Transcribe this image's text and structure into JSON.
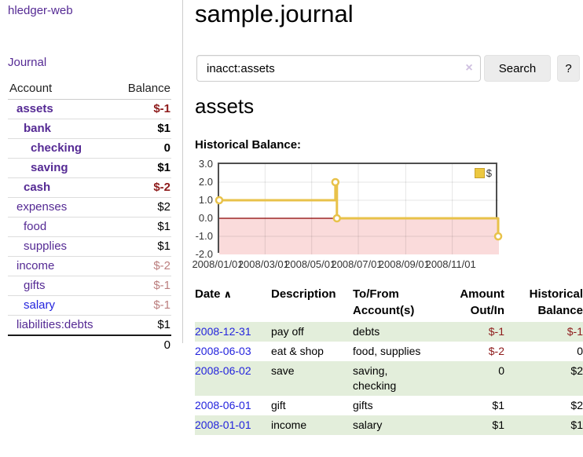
{
  "sidebar": {
    "brand": "hledger-web",
    "nav": {
      "journal_label": "Journal"
    },
    "accounts_table": {
      "headers": {
        "account": "Account",
        "balance": "Balance"
      },
      "rows": [
        {
          "account": "assets",
          "balance": "$-1",
          "level": 1,
          "bold": true,
          "negative": "strong",
          "link_style": "visited"
        },
        {
          "account": "bank",
          "balance": "$1",
          "level": 2,
          "bold": true,
          "negative": "none",
          "link_style": "visited"
        },
        {
          "account": "checking",
          "balance": "0",
          "level": 3,
          "bold": true,
          "negative": "none",
          "link_style": "visited"
        },
        {
          "account": "saving",
          "balance": "$1",
          "level": 3,
          "bold": true,
          "negative": "none",
          "link_style": "visited"
        },
        {
          "account": "cash",
          "balance": "$-2",
          "level": 2,
          "bold": true,
          "negative": "strong",
          "link_style": "visited"
        },
        {
          "account": "expenses",
          "balance": "$2",
          "level": 1,
          "bold": false,
          "negative": "none",
          "link_style": "visited"
        },
        {
          "account": "food",
          "balance": "$1",
          "level": 2,
          "bold": false,
          "negative": "none",
          "link_style": "visited"
        },
        {
          "account": "supplies",
          "balance": "$1",
          "level": 2,
          "bold": false,
          "negative": "none",
          "link_style": "visited"
        },
        {
          "account": "income",
          "balance": "$-2",
          "level": 1,
          "bold": false,
          "negative": "soft",
          "link_style": "visited"
        },
        {
          "account": "gifts",
          "balance": "$-1",
          "level": 2,
          "bold": false,
          "negative": "soft",
          "link_style": "visited"
        },
        {
          "account": "salary",
          "balance": "$-1",
          "level": 2,
          "bold": false,
          "negative": "soft",
          "link_style": "unvisited"
        },
        {
          "account": "liabilities:debts",
          "balance": "$1",
          "level": 1,
          "bold": false,
          "negative": "none",
          "link_style": "visited"
        }
      ],
      "total": "0"
    }
  },
  "main": {
    "title": "sample.journal",
    "search": {
      "value": "inacct:assets",
      "clear_icon": "×",
      "button_label": "Search",
      "help_label": "?"
    },
    "section_title": "assets",
    "chart_label": "Historical Balance:"
  },
  "chart_data": {
    "type": "line",
    "step": true,
    "title": "Historical Balance",
    "series": [
      {
        "name": "$",
        "color": "#e8c24a",
        "points": [
          {
            "x": "2008-01-01",
            "y": 1
          },
          {
            "x": "2008-06-01",
            "y": 2
          },
          {
            "x": "2008-06-03",
            "y": 0
          },
          {
            "x": "2008-12-31",
            "y": -1
          }
        ]
      }
    ],
    "x_start": "2008-01-01",
    "x_end": "2009-01-01",
    "ylim": [
      -2,
      3
    ],
    "yticks": [
      3.0,
      2.0,
      1.0,
      0.0,
      -1.0,
      -2.0
    ],
    "xtick_labels": [
      "2008/01/01",
      "2008/03/01",
      "2008/05/01",
      "2008/07/01",
      "2008/09/01",
      "2008/11/01"
    ],
    "legend": {
      "label": "$",
      "position": "top-right"
    },
    "grid": true,
    "negative_region_color": "#fadbdb",
    "zero_line_color": "#8b0000",
    "marker": "open-circle"
  },
  "register": {
    "headers": {
      "date": "Date",
      "description": "Description",
      "accounts": "To/From Account(s)",
      "amount": "Amount Out/In",
      "balance": "Historical Balance"
    },
    "sort_caret": "∧",
    "rows": [
      {
        "date": "2008-12-31",
        "description": "pay off",
        "accounts": "debts",
        "amount": "$-1",
        "amount_negative": true,
        "balance": "$-1",
        "balance_negative": true
      },
      {
        "date": "2008-06-03",
        "description": "eat & shop",
        "accounts": "food, supplies",
        "amount": "$-2",
        "amount_negative": true,
        "balance": "0",
        "balance_negative": false
      },
      {
        "date": "2008-06-02",
        "description": "save",
        "accounts": "saving, checking",
        "amount": "0",
        "amount_negative": false,
        "balance": "$2",
        "balance_negative": false
      },
      {
        "date": "2008-06-01",
        "description": "gift",
        "accounts": "gifts",
        "amount": "$1",
        "amount_negative": false,
        "balance": "$2",
        "balance_negative": false
      },
      {
        "date": "2008-01-01",
        "description": "income",
        "accounts": "salary",
        "amount": "$1",
        "amount_negative": false,
        "balance": "$1",
        "balance_negative": false
      }
    ]
  },
  "colors": {
    "link_purple": "#552a94",
    "link_blue": "#2323dd",
    "negative_strong": "#8e1b1b",
    "negative_soft": "#bb7e7e",
    "row_green": "#e3eedb",
    "chart_line_gold": "#e8c24a",
    "chart_negative_pink": "#fadbdb",
    "chart_zero_line": "#8b0000"
  }
}
